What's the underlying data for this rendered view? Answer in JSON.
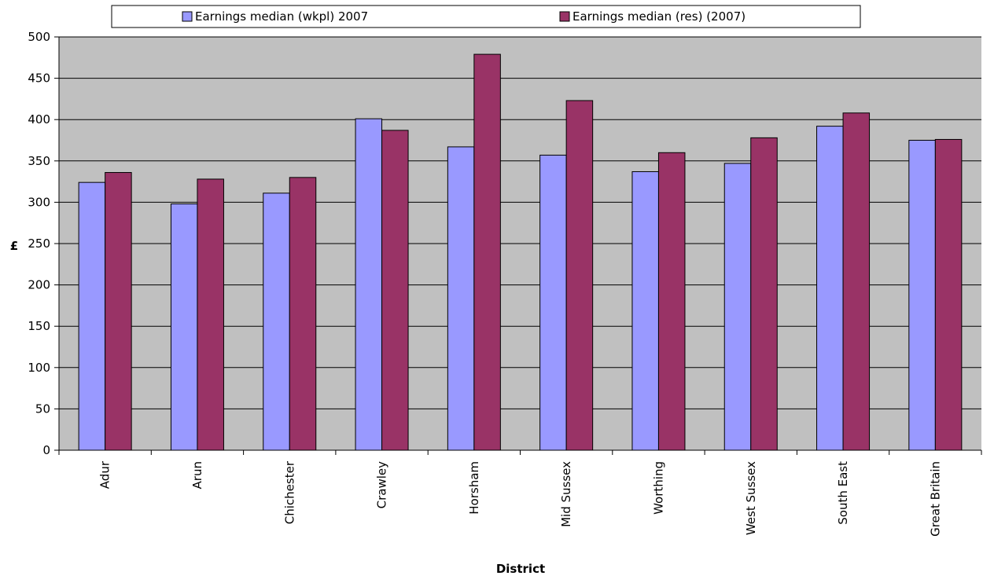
{
  "chart_data": {
    "type": "bar",
    "xlabel": "District",
    "ylabel": "£",
    "ylim": [
      0,
      500
    ],
    "yticks": [
      0,
      50,
      100,
      150,
      200,
      250,
      300,
      350,
      400,
      450,
      500
    ],
    "grid": true,
    "legend_position": "top",
    "plot_background": "#c0c0c0",
    "categories": [
      "Adur",
      "Arun",
      "Chichester",
      "Crawley",
      "Horsham",
      "Mid Sussex",
      "Worthing",
      "West Sussex",
      "South East",
      "Great Britain"
    ],
    "series": [
      {
        "name": "Earnings median (wkpl) 2007",
        "color": "#9999ff",
        "values": [
          324,
          298,
          311,
          401,
          367,
          357,
          337,
          347,
          392,
          375
        ]
      },
      {
        "name": "Earnings median (res) (2007)",
        "color": "#993366",
        "values": [
          336,
          328,
          330,
          387,
          479,
          423,
          360,
          378,
          408,
          376
        ]
      }
    ]
  }
}
